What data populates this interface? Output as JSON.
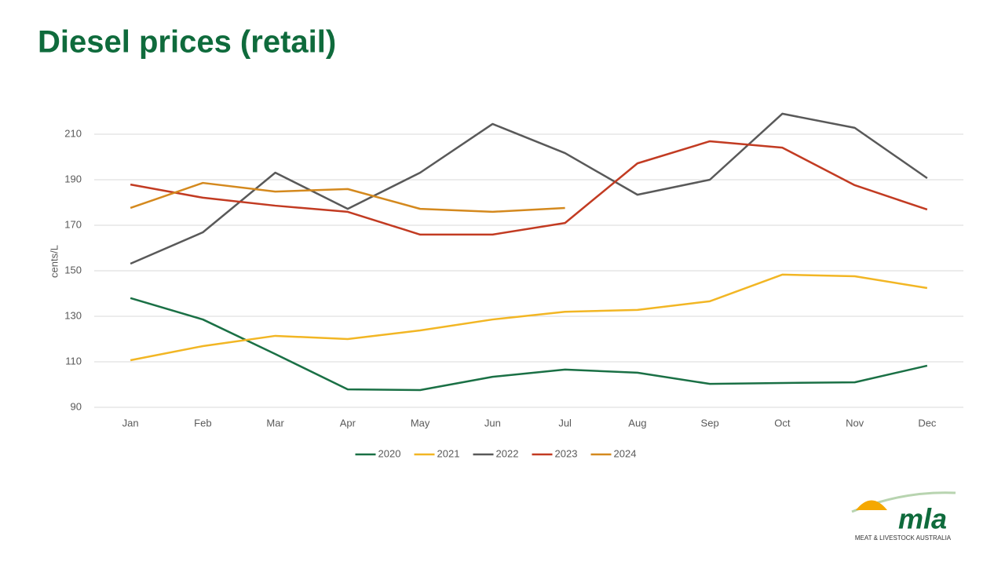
{
  "chart_data": {
    "type": "line",
    "title": "Diesel prices (retail)",
    "y_label": "cents/L",
    "categories": [
      "Jan",
      "Feb",
      "Mar",
      "Apr",
      "May",
      "Jun",
      "Jul",
      "Aug",
      "Sep",
      "Oct",
      "Nov",
      "Dec"
    ],
    "series": [
      {
        "name": "2020",
        "color": "#1a7045",
        "values": [
          138,
          128.6,
          113.4,
          97.9,
          97.6,
          103.4,
          106.6,
          105.2,
          100.3,
          100.7,
          101,
          108.3
        ]
      },
      {
        "name": "2021",
        "color": "#f2b624",
        "values": [
          110.7,
          116.9,
          121.4,
          120,
          123.8,
          128.6,
          132,
          132.8,
          136.6,
          148.3,
          147.6,
          142.4
        ]
      },
      {
        "name": "2022",
        "color": "#595959",
        "values": [
          153.1,
          166.9,
          193.1,
          177.2,
          193.1,
          214.5,
          201.7,
          183.4,
          190,
          219,
          212.8,
          190.7
        ]
      },
      {
        "name": "2023",
        "color": "#c23b22",
        "values": [
          187.9,
          182.1,
          178.6,
          175.9,
          165.9,
          165.9,
          171,
          197.2,
          206.9,
          204.1,
          187.6,
          176.9
        ]
      },
      {
        "name": "2024",
        "color": "#d4891e",
        "values": [
          177.6,
          188.6,
          184.8,
          185.9,
          177.2,
          175.9,
          177.6,
          null,
          null,
          null,
          null,
          null
        ]
      }
    ],
    "ylim": [
      90,
      230
    ],
    "yticks": [
      90,
      110,
      130,
      150,
      170,
      190,
      210
    ],
    "grid": true,
    "legend": "bottom"
  },
  "logo": {
    "name": "mla",
    "tagline": "MEAT & LIVESTOCK AUSTRALIA"
  }
}
